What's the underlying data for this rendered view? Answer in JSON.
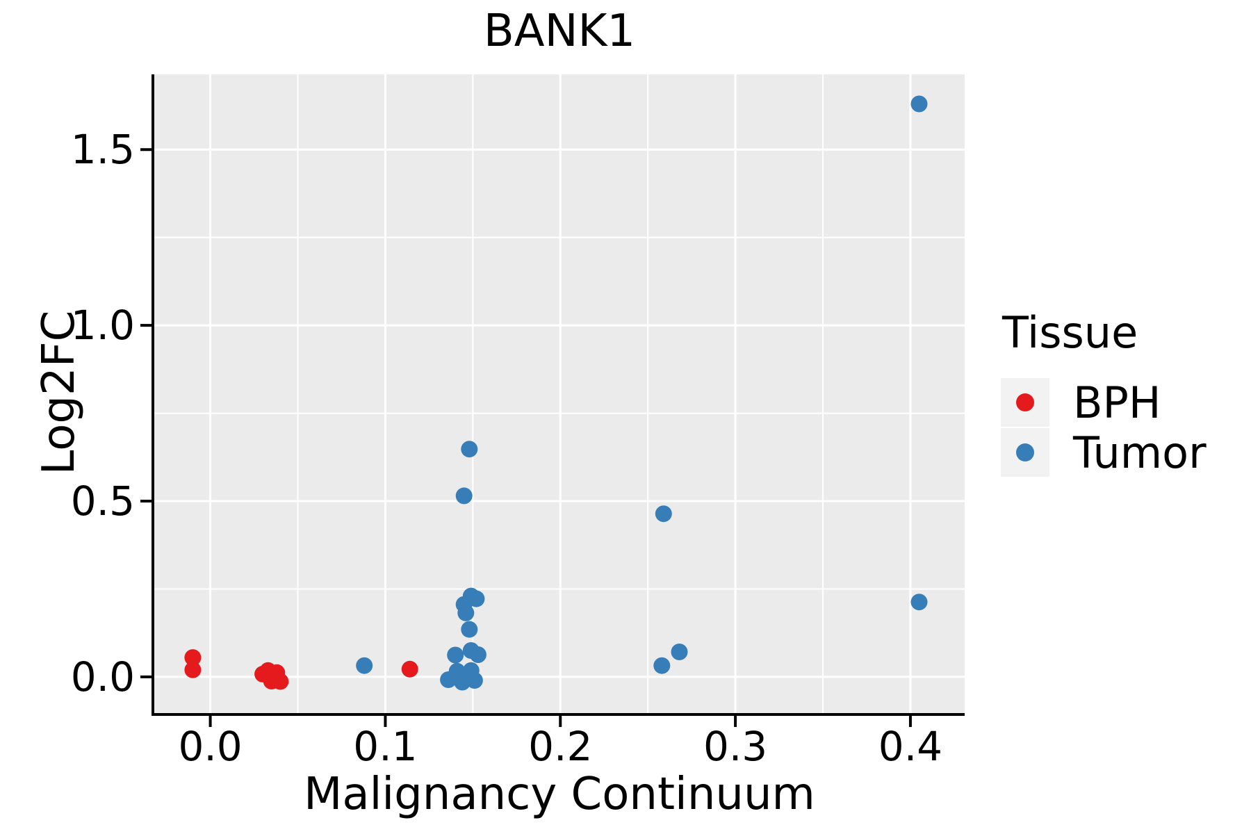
{
  "chart_data": {
    "type": "scatter",
    "title": "BANK1",
    "xlabel": "Malignancy Continuum",
    "ylabel": "Log2FC",
    "xlim": [
      -0.032,
      0.431
    ],
    "ylim": [
      -0.103,
      1.714
    ],
    "grid": "on",
    "panel_background": "#ebebeb",
    "gridline_color": "#ffffff",
    "axis_color": "#000000",
    "x_ticks": {
      "values": [
        0.0,
        0.1,
        0.2,
        0.3,
        0.4
      ],
      "labels": [
        "0.0",
        "0.1",
        "0.2",
        "0.3",
        "0.4"
      ]
    },
    "y_ticks": {
      "values": [
        0.0,
        0.5,
        1.0,
        1.5
      ],
      "labels": [
        "0.0",
        "0.5",
        "1.0",
        "1.5"
      ]
    },
    "x_minor": [
      0.05,
      0.15,
      0.25,
      0.35
    ],
    "y_minor": [
      0.25,
      0.75,
      1.25
    ],
    "legend": {
      "title": "Tissue",
      "position": "right"
    },
    "series": [
      {
        "name": "BPH",
        "color": "#e41a1c",
        "points": [
          [
            -0.01,
            0.055
          ],
          [
            -0.01,
            0.02
          ],
          [
            0.03,
            0.008
          ],
          [
            0.033,
            0.018
          ],
          [
            0.036,
            0.0
          ],
          [
            0.038,
            0.012
          ],
          [
            0.035,
            -0.012
          ],
          [
            0.04,
            -0.013
          ],
          [
            0.114,
            0.022
          ]
        ]
      },
      {
        "name": "Tumor",
        "color": "#377eb8",
        "points": [
          [
            0.088,
            0.032
          ],
          [
            0.148,
            0.648
          ],
          [
            0.145,
            0.515
          ],
          [
            0.149,
            0.23
          ],
          [
            0.152,
            0.222
          ],
          [
            0.145,
            0.206
          ],
          [
            0.146,
            0.182
          ],
          [
            0.148,
            0.135
          ],
          [
            0.14,
            0.062
          ],
          [
            0.149,
            0.075
          ],
          [
            0.153,
            0.063
          ],
          [
            0.141,
            0.016
          ],
          [
            0.149,
            0.018
          ],
          [
            0.136,
            -0.008
          ],
          [
            0.144,
            -0.015
          ],
          [
            0.151,
            -0.01
          ],
          [
            0.147,
            0.002
          ],
          [
            0.258,
            0.032
          ],
          [
            0.268,
            0.071
          ],
          [
            0.259,
            0.464
          ],
          [
            0.405,
            0.213
          ],
          [
            0.405,
            1.63
          ]
        ]
      }
    ]
  }
}
